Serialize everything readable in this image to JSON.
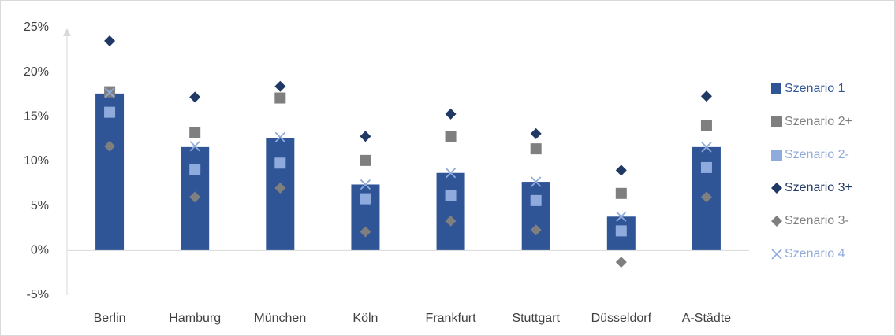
{
  "chart_data": {
    "type": "bar",
    "categories": [
      "Berlin",
      "Hamburg",
      "München",
      "Köln",
      "Frankfurt",
      "Stuttgart",
      "Düsseldorf",
      "A-Städte"
    ],
    "series": [
      {
        "name": "Szenario 1",
        "color": "#2f5597",
        "marker": "bar",
        "values": [
          17.6,
          11.6,
          12.6,
          7.4,
          8.7,
          7.7,
          3.8,
          11.6
        ]
      },
      {
        "name": "Szenario 2+",
        "color": "#7f7f7f",
        "marker": "square",
        "values": [
          17.8,
          13.2,
          17.1,
          10.1,
          12.8,
          11.4,
          6.4,
          14.0
        ]
      },
      {
        "name": "Szenario 2-",
        "color": "#8faadc",
        "marker": "square",
        "values": [
          15.5,
          9.1,
          9.8,
          5.8,
          6.2,
          5.6,
          2.2,
          9.3
        ]
      },
      {
        "name": "Szenario 3+",
        "color": "#203864",
        "marker": "diamond",
        "values": [
          23.5,
          17.2,
          18.4,
          12.8,
          15.3,
          13.1,
          9.0,
          17.3
        ]
      },
      {
        "name": "Szenario 3-",
        "color": "#7f7f7f",
        "marker": "diamond",
        "values": [
          11.7,
          6.0,
          7.0,
          2.1,
          3.3,
          2.3,
          -1.3,
          6.0
        ]
      },
      {
        "name": "Szenario 4",
        "color": "#8faadc",
        "marker": "x",
        "values": [
          17.7,
          11.7,
          12.7,
          7.4,
          8.7,
          7.7,
          3.8,
          11.6
        ]
      }
    ],
    "ylim": [
      -5,
      25
    ],
    "yticks": [
      {
        "value": -5,
        "label": "-5%"
      },
      {
        "value": 0,
        "label": "0%"
      },
      {
        "value": 5,
        "label": "5%"
      },
      {
        "value": 10,
        "label": "10%"
      },
      {
        "value": 15,
        "label": "15%"
      },
      {
        "value": 20,
        "label": "20%"
      },
      {
        "value": 25,
        "label": "25%"
      }
    ],
    "legend": "right",
    "grid": false
  }
}
